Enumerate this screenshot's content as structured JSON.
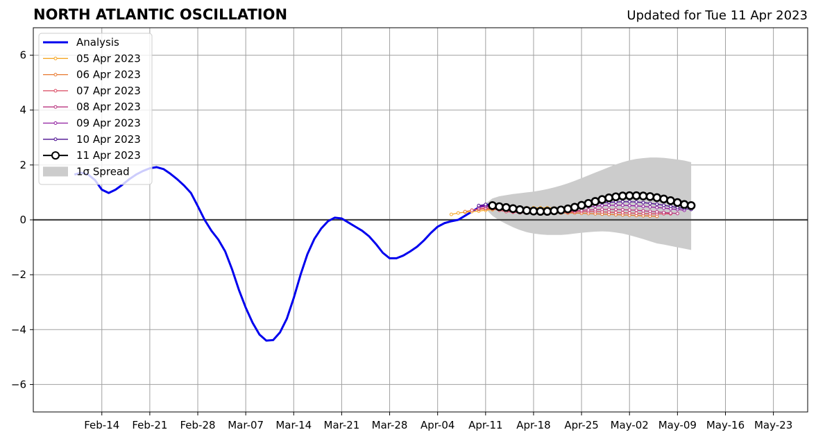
{
  "title": "NORTH ATLANTIC OSCILLATION",
  "updated": "Updated for Tue 11 Apr 2023",
  "chart_data": {
    "type": "line",
    "title": "NORTH ATLANTIC OSCILLATION",
    "xlabel": "",
    "ylabel": "",
    "xlim_days": [
      35,
      148
    ],
    "ylim": [
      -7,
      7
    ],
    "grid": true,
    "legend_placement": "top-left",
    "x_ticks": [
      {
        "day": 45,
        "label": "Feb-14"
      },
      {
        "day": 52,
        "label": "Feb-21"
      },
      {
        "day": 59,
        "label": "Feb-28"
      },
      {
        "day": 66,
        "label": "Mar-07"
      },
      {
        "day": 73,
        "label": "Mar-14"
      },
      {
        "day": 80,
        "label": "Mar-21"
      },
      {
        "day": 87,
        "label": "Mar-28"
      },
      {
        "day": 94,
        "label": "Apr-04"
      },
      {
        "day": 101,
        "label": "Apr-11"
      },
      {
        "day": 108,
        "label": "Apr-18"
      },
      {
        "day": 115,
        "label": "Apr-25"
      },
      {
        "day": 122,
        "label": "May-02"
      },
      {
        "day": 129,
        "label": "May-09"
      },
      {
        "day": 136,
        "label": "May-16"
      },
      {
        "day": 143,
        "label": "May-23"
      }
    ],
    "y_ticks": [
      {
        "value": 6,
        "label": "6"
      },
      {
        "value": 4,
        "label": "4"
      },
      {
        "value": 2,
        "label": "2"
      },
      {
        "value": 0,
        "label": "0"
      },
      {
        "value": -2,
        "label": "−2"
      },
      {
        "value": -4,
        "label": "−4"
      },
      {
        "value": -6,
        "label": "−6"
      }
    ],
    "analysis": {
      "name": "Analysis",
      "color": "#0000ee",
      "x_start_day": 41,
      "values": [
        1.65,
        1.72,
        1.65,
        1.45,
        1.1,
        0.98,
        1.1,
        1.28,
        1.48,
        1.65,
        1.78,
        1.88,
        1.92,
        1.85,
        1.68,
        1.48,
        1.25,
        0.98,
        0.5,
        0.0,
        -0.4,
        -0.72,
        -1.15,
        -1.8,
        -2.55,
        -3.2,
        -3.75,
        -4.18,
        -4.4,
        -4.38,
        -4.1,
        -3.6,
        -2.85,
        -2.0,
        -1.25,
        -0.7,
        -0.32,
        -0.05,
        0.08,
        0.05,
        -0.1,
        -0.25,
        -0.4,
        -0.6,
        -0.88,
        -1.2,
        -1.4,
        -1.4,
        -1.3,
        -1.15,
        -0.98,
        -0.75,
        -0.48,
        -0.25,
        -0.12,
        -0.05,
        0.0,
        0.15,
        0.3,
        0.45,
        0.55,
        0.55
      ]
    },
    "spread": {
      "name": "1σ Spread",
      "color": "#cccccc",
      "x_start_day": 101,
      "upper": [
        0.6,
        0.78,
        0.86,
        0.9,
        0.94,
        0.97,
        1.0,
        1.03,
        1.07,
        1.12,
        1.18,
        1.25,
        1.33,
        1.42,
        1.52,
        1.62,
        1.72,
        1.82,
        1.92,
        2.02,
        2.1,
        2.17,
        2.22,
        2.25,
        2.27,
        2.27,
        2.26,
        2.23,
        2.2,
        2.16,
        2.1
      ],
      "lower": [
        0.4,
        0.15,
        -0.02,
        -0.15,
        -0.27,
        -0.37,
        -0.45,
        -0.5,
        -0.53,
        -0.55,
        -0.55,
        -0.55,
        -0.53,
        -0.5,
        -0.47,
        -0.45,
        -0.43,
        -0.42,
        -0.43,
        -0.46,
        -0.5,
        -0.56,
        -0.63,
        -0.7,
        -0.78,
        -0.86,
        -0.9,
        -0.95,
        -1.0,
        -1.05,
        -1.1
      ]
    },
    "forecasts": [
      {
        "name": "05 Apr 2023",
        "color": "#f5a623",
        "x_start_day": 96,
        "values": [
          0.2,
          0.25,
          0.28,
          0.3,
          0.32,
          0.35,
          0.37,
          0.38,
          0.4,
          0.42,
          0.43,
          0.44,
          0.44,
          0.44,
          0.44,
          0.43
        ]
      },
      {
        "name": "06 Apr 2023",
        "color": "#e8782e",
        "x_start_day": 98,
        "values": [
          0.3,
          0.35,
          0.38,
          0.4,
          0.4,
          0.38,
          0.35,
          0.32,
          0.3,
          0.28,
          0.27,
          0.26,
          0.25,
          0.25,
          0.25,
          0.25,
          0.25,
          0.24,
          0.23,
          0.22,
          0.21,
          0.2,
          0.19,
          0.18,
          0.17,
          0.16,
          0.15,
          0.14,
          0.13
        ]
      },
      {
        "name": "07 Apr 2023",
        "color": "#d9455f",
        "x_start_day": 99,
        "values": [
          0.35,
          0.4,
          0.42,
          0.4,
          0.35,
          0.3,
          0.28,
          0.26,
          0.25,
          0.24,
          0.24,
          0.25,
          0.26,
          0.27,
          0.28,
          0.29,
          0.3,
          0.3,
          0.3,
          0.29,
          0.28,
          0.27,
          0.26,
          0.25,
          0.24,
          0.23,
          0.22,
          0.22,
          0.22,
          0.22
        ]
      },
      {
        "name": "08 Apr 2023",
        "color": "#b8337e",
        "x_start_day": 100,
        "values": [
          0.45,
          0.48,
          0.45,
          0.4,
          0.35,
          0.3,
          0.27,
          0.25,
          0.24,
          0.24,
          0.25,
          0.27,
          0.29,
          0.31,
          0.33,
          0.35,
          0.36,
          0.37,
          0.38,
          0.38,
          0.38,
          0.37,
          0.36,
          0.35,
          0.33,
          0.31,
          0.29,
          0.27,
          0.25,
          0.23
        ]
      },
      {
        "name": "09 Apr 2023",
        "color": "#8e1a9e",
        "x_start_day": 100,
        "values": [
          0.5,
          0.52,
          0.48,
          0.42,
          0.36,
          0.32,
          0.29,
          0.28,
          0.28,
          0.29,
          0.31,
          0.34,
          0.37,
          0.4,
          0.43,
          0.46,
          0.48,
          0.5,
          0.52,
          0.53,
          0.53,
          0.53,
          0.52,
          0.51,
          0.49,
          0.47,
          0.45,
          0.43,
          0.4,
          0.38,
          0.35
        ]
      },
      {
        "name": "10 Apr 2023",
        "color": "#4a0c8f",
        "x_start_day": 100,
        "values": [
          0.52,
          0.56,
          0.52,
          0.45,
          0.39,
          0.34,
          0.31,
          0.3,
          0.3,
          0.31,
          0.33,
          0.36,
          0.4,
          0.44,
          0.48,
          0.52,
          0.56,
          0.59,
          0.62,
          0.64,
          0.65,
          0.66,
          0.66,
          0.65,
          0.63,
          0.6,
          0.57,
          0.53,
          0.49,
          0.45,
          0.41,
          0.38
        ]
      },
      {
        "name": "11 Apr 2023",
        "color": "#000000",
        "x_start_day": 102,
        "marker": "open-circle",
        "values": [
          0.52,
          0.48,
          0.45,
          0.41,
          0.37,
          0.34,
          0.32,
          0.31,
          0.31,
          0.33,
          0.36,
          0.4,
          0.46,
          0.53,
          0.6,
          0.67,
          0.74,
          0.8,
          0.84,
          0.87,
          0.88,
          0.88,
          0.87,
          0.85,
          0.81,
          0.76,
          0.7,
          0.63,
          0.56,
          0.52
        ]
      }
    ]
  }
}
